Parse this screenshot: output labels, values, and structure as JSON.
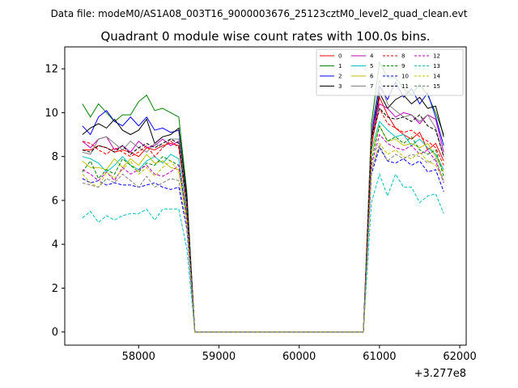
{
  "suptitle": "Data file: modeM0/AS1A08_003T16_9000003676_25123cztM0_level2_quad_clean.evt",
  "chart_data": {
    "type": "line",
    "title": "Quadrant 0 module wise count rates with 100.0s bins.",
    "xlabel": "",
    "ylabel": "",
    "x_offset_label": "+3.277e8",
    "xlim": [
      57080,
      62080
    ],
    "ylim": [
      -0.6,
      13.0
    ],
    "xticks": [
      58000,
      59000,
      60000,
      61000,
      62000
    ],
    "xtick_labels": [
      "58000",
      "59000",
      "60000",
      "61000",
      "62000"
    ],
    "yticks": [
      0,
      2,
      4,
      6,
      8,
      10,
      12
    ],
    "ytick_labels": [
      "0",
      "2",
      "4",
      "6",
      "8",
      "10",
      "12"
    ],
    "grid": false,
    "legend_position": "top-right",
    "legend_columns": 4,
    "x": [
      57300,
      57400,
      57500,
      57600,
      57700,
      57800,
      57900,
      58000,
      58100,
      58200,
      58300,
      58400,
      58500,
      58600,
      58700,
      58800,
      58900,
      59000,
      59100,
      59200,
      59300,
      59400,
      59500,
      59600,
      59700,
      59800,
      59900,
      60000,
      60100,
      60200,
      60300,
      60400,
      60500,
      60600,
      60700,
      60800,
      60900,
      61000,
      61100,
      61200,
      61300,
      61400,
      61500,
      61600,
      61700,
      61800
    ],
    "series": [
      {
        "name": "0",
        "color": "#ff0000",
        "dash": "solid",
        "values": [
          8.3,
          8.3,
          8.5,
          8.4,
          8.2,
          8.3,
          8.2,
          8.0,
          8.4,
          8.3,
          8.5,
          8.6,
          8.5,
          5.8,
          0,
          0,
          0,
          0,
          0,
          0,
          0,
          0,
          0,
          0,
          0,
          0,
          0,
          0,
          0,
          0,
          0,
          0,
          0,
          0,
          0,
          0,
          8.4,
          10.7,
          9.9,
          9.3,
          9.0,
          8.8,
          9.1,
          8.3,
          8.6,
          7.8
        ]
      },
      {
        "name": "1",
        "color": "#008000",
        "dash": "solid",
        "values": [
          10.4,
          9.8,
          10.4,
          10.0,
          9.6,
          9.9,
          9.9,
          10.5,
          10.8,
          10.1,
          10.2,
          10.0,
          9.8,
          6.4,
          0,
          0,
          0,
          0,
          0,
          0,
          0,
          0,
          0,
          0,
          0,
          0,
          0,
          0,
          0,
          0,
          0,
          0,
          0,
          0,
          0,
          0,
          9.5,
          12.3,
          11.6,
          11.6,
          11.1,
          10.8,
          11.3,
          10.8,
          10.0,
          9.0
        ]
      },
      {
        "name": "2",
        "color": "#0000ff",
        "dash": "solid",
        "values": [
          9.4,
          9.0,
          9.8,
          10.1,
          9.6,
          9.4,
          9.8,
          9.4,
          9.8,
          9.2,
          9.3,
          9.1,
          9.2,
          6.2,
          0,
          0,
          0,
          0,
          0,
          0,
          0,
          0,
          0,
          0,
          0,
          0,
          0,
          0,
          0,
          0,
          0,
          0,
          0,
          0,
          0,
          0,
          9.0,
          11.2,
          10.6,
          11.4,
          10.7,
          11.1,
          10.4,
          10.9,
          9.8,
          8.5
        ]
      },
      {
        "name": "3",
        "color": "#000000",
        "dash": "solid",
        "values": [
          9.0,
          9.3,
          9.5,
          9.3,
          9.7,
          9.2,
          9.0,
          9.2,
          9.7,
          8.6,
          8.9,
          9.0,
          9.3,
          6.2,
          0,
          0,
          0,
          0,
          0,
          0,
          0,
          0,
          0,
          0,
          0,
          0,
          0,
          0,
          0,
          0,
          0,
          0,
          0,
          0,
          0,
          0,
          8.8,
          10.9,
          10.2,
          10.6,
          10.8,
          10.4,
          10.7,
          10.2,
          10.3,
          8.9
        ]
      },
      {
        "name": "4",
        "color": "#bf00bf",
        "dash": "solid",
        "values": [
          8.7,
          8.4,
          8.8,
          8.9,
          8.3,
          8.5,
          8.2,
          8.7,
          8.4,
          8.5,
          8.8,
          8.5,
          8.7,
          5.8,
          0,
          0,
          0,
          0,
          0,
          0,
          0,
          0,
          0,
          0,
          0,
          0,
          0,
          0,
          0,
          0,
          0,
          0,
          0,
          0,
          0,
          0,
          9.1,
          10.4,
          10.2,
          9.8,
          10.0,
          9.9,
          9.5,
          9.9,
          9.7,
          8.2
        ]
      },
      {
        "name": "5",
        "color": "#00bfbf",
        "dash": "solid",
        "values": [
          8.0,
          7.9,
          7.7,
          7.3,
          7.6,
          8.0,
          7.6,
          7.4,
          7.8,
          8.0,
          7.7,
          8.1,
          7.9,
          5.4,
          0,
          0,
          0,
          0,
          0,
          0,
          0,
          0,
          0,
          0,
          0,
          0,
          0,
          0,
          0,
          0,
          0,
          0,
          0,
          0,
          0,
          0,
          8.3,
          9.6,
          9.2,
          8.9,
          9.0,
          8.5,
          8.8,
          8.4,
          8.1,
          7.4
        ]
      },
      {
        "name": "6",
        "color": "#bfbf00",
        "dash": "solid",
        "values": [
          7.8,
          7.5,
          7.5,
          7.4,
          7.9,
          7.5,
          7.9,
          7.6,
          8.1,
          7.7,
          7.8,
          7.5,
          7.4,
          5.2,
          0,
          0,
          0,
          0,
          0,
          0,
          0,
          0,
          0,
          0,
          0,
          0,
          0,
          0,
          0,
          0,
          0,
          0,
          0,
          0,
          0,
          0,
          8.1,
          9.4,
          8.7,
          8.8,
          8.5,
          8.6,
          8.4,
          8.6,
          8.0,
          7.3
        ]
      },
      {
        "name": "7",
        "color": "#808080",
        "dash": "solid",
        "values": [
          8.2,
          8.1,
          8.8,
          8.9,
          8.6,
          8.3,
          8.7,
          8.4,
          8.2,
          8.6,
          8.4,
          8.8,
          8.8,
          5.9,
          0,
          0,
          0,
          0,
          0,
          0,
          0,
          0,
          0,
          0,
          0,
          0,
          0,
          0,
          0,
          0,
          0,
          0,
          0,
          0,
          0,
          0,
          9.2,
          11.5,
          10.4,
          10.1,
          9.8,
          9.9,
          9.6,
          9.9,
          9.3,
          8.0
        ]
      },
      {
        "name": "8",
        "color": "#ff0000",
        "dash": "dashed",
        "values": [
          8.7,
          8.6,
          8.3,
          8.1,
          8.4,
          8.2,
          8.0,
          8.2,
          8.5,
          8.0,
          8.4,
          8.7,
          8.4,
          5.7,
          0,
          0,
          0,
          0,
          0,
          0,
          0,
          0,
          0,
          0,
          0,
          0,
          0,
          0,
          0,
          0,
          0,
          0,
          0,
          0,
          0,
          0,
          8.6,
          10.2,
          9.5,
          9.3,
          9.1,
          9.2,
          8.9,
          8.7,
          8.4,
          7.6
        ]
      },
      {
        "name": "9",
        "color": "#008000",
        "dash": "dashed",
        "values": [
          7.3,
          7.8,
          7.0,
          7.4,
          7.2,
          7.9,
          7.6,
          7.3,
          7.7,
          7.6,
          8.0,
          7.8,
          7.6,
          5.3,
          0,
          0,
          0,
          0,
          0,
          0,
          0,
          0,
          0,
          0,
          0,
          0,
          0,
          0,
          0,
          0,
          0,
          0,
          0,
          0,
          0,
          0,
          7.8,
          9.4,
          8.7,
          8.9,
          8.6,
          8.9,
          8.3,
          8.1,
          8.3,
          7.1
        ]
      },
      {
        "name": "10",
        "color": "#0000ff",
        "dash": "dashed",
        "values": [
          7.0,
          6.8,
          6.9,
          6.7,
          6.8,
          6.7,
          6.7,
          6.6,
          6.7,
          6.8,
          6.6,
          6.5,
          6.6,
          4.7,
          0,
          0,
          0,
          0,
          0,
          0,
          0,
          0,
          0,
          0,
          0,
          0,
          0,
          0,
          0,
          0,
          0,
          0,
          0,
          0,
          0,
          0,
          7.2,
          8.4,
          7.8,
          7.7,
          7.9,
          7.6,
          7.8,
          7.3,
          7.4,
          6.4
        ]
      },
      {
        "name": "11",
        "color": "#000000",
        "dash": "dashed",
        "values": [
          8.3,
          8.2,
          8.5,
          8.4,
          8.2,
          8.5,
          8.1,
          8.4,
          8.6,
          8.4,
          8.6,
          8.8,
          8.6,
          5.9,
          0,
          0,
          0,
          0,
          0,
          0,
          0,
          0,
          0,
          0,
          0,
          0,
          0,
          0,
          0,
          0,
          0,
          0,
          0,
          0,
          0,
          0,
          8.8,
          10.2,
          9.8,
          9.7,
          9.8,
          9.6,
          9.9,
          9.4,
          9.2,
          8.0
        ]
      },
      {
        "name": "12",
        "color": "#bf00bf",
        "dash": "dashed",
        "values": [
          7.4,
          7.2,
          6.9,
          7.3,
          6.9,
          7.5,
          7.2,
          7.4,
          7.6,
          7.2,
          7.1,
          7.3,
          7.6,
          5.1,
          0,
          0,
          0,
          0,
          0,
          0,
          0,
          0,
          0,
          0,
          0,
          0,
          0,
          0,
          0,
          0,
          0,
          0,
          0,
          0,
          0,
          0,
          7.6,
          9.0,
          8.6,
          8.4,
          8.3,
          8.5,
          8.1,
          8.3,
          7.8,
          6.8
        ]
      },
      {
        "name": "13",
        "color": "#00bfbf",
        "dash": "dashed",
        "values": [
          5.2,
          5.5,
          5.0,
          5.3,
          5.1,
          5.3,
          5.4,
          5.4,
          5.6,
          5.1,
          5.6,
          5.6,
          5.6,
          3.8,
          0,
          0,
          0,
          0,
          0,
          0,
          0,
          0,
          0,
          0,
          0,
          0,
          0,
          0,
          0,
          0,
          0,
          0,
          0,
          0,
          0,
          0,
          5.9,
          7.2,
          6.2,
          7.2,
          6.6,
          6.6,
          5.9,
          6.2,
          6.3,
          5.4
        ]
      },
      {
        "name": "14",
        "color": "#bfbf00",
        "dash": "dashed",
        "values": [
          7.2,
          6.8,
          6.6,
          7.3,
          7.0,
          7.4,
          7.8,
          7.2,
          7.5,
          7.1,
          7.5,
          7.8,
          7.3,
          5.1,
          0,
          0,
          0,
          0,
          0,
          0,
          0,
          0,
          0,
          0,
          0,
          0,
          0,
          0,
          0,
          0,
          0,
          0,
          0,
          0,
          0,
          0,
          7.4,
          8.6,
          8.1,
          8.3,
          8.0,
          7.9,
          8.2,
          7.8,
          7.6,
          6.9
        ]
      },
      {
        "name": "15",
        "color": "#808080",
        "dash": "dashed",
        "values": [
          6.8,
          6.7,
          6.6,
          7.0,
          6.8,
          7.2,
          6.9,
          6.6,
          7.1,
          6.6,
          6.8,
          7.0,
          6.9,
          4.8,
          0,
          0,
          0,
          0,
          0,
          0,
          0,
          0,
          0,
          0,
          0,
          0,
          0,
          0,
          0,
          0,
          0,
          0,
          0,
          0,
          0,
          0,
          7.4,
          8.5,
          7.8,
          8.1,
          7.9,
          8.1,
          8.0,
          7.7,
          7.9,
          6.9
        ]
      }
    ]
  }
}
